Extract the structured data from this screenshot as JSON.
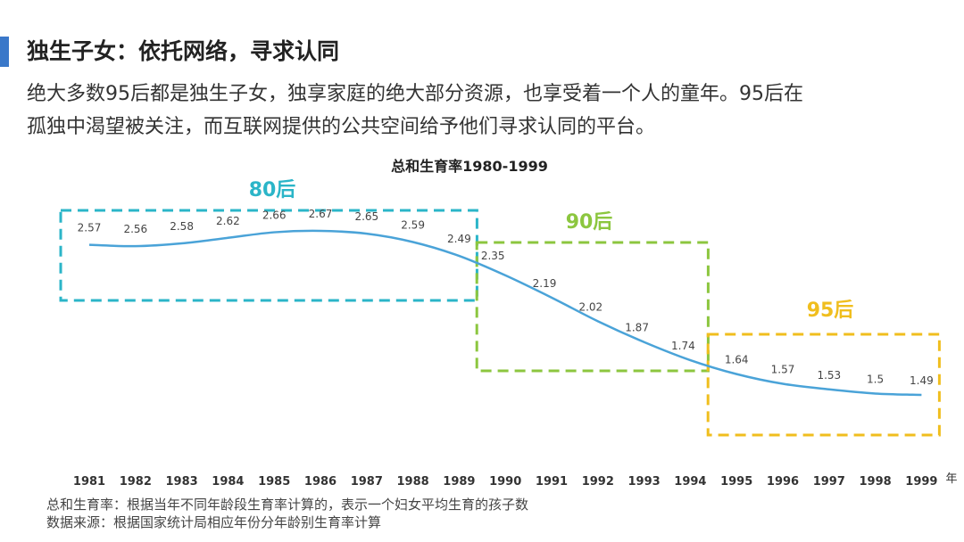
{
  "header": {
    "title": "独生子女：依托网络，寻求认同",
    "intro_lines": [
      "绝大多数95后都是独生子女，独享家庭的绝大部分资源，也享受着一个人的童年。95后在",
      "孤独中渴望被关注，而互联网提供的公共空间给予他们寻求认同的平台。"
    ]
  },
  "chart_data": {
    "type": "line",
    "title": "总和生育率1980-1999",
    "x_unit": "年",
    "x": [
      1981,
      1982,
      1983,
      1984,
      1985,
      1986,
      1987,
      1988,
      1989,
      1990,
      1991,
      1992,
      1993,
      1994,
      1995,
      1996,
      1997,
      1998,
      1999
    ],
    "values": [
      2.57,
      2.56,
      2.58,
      2.62,
      2.66,
      2.67,
      2.65,
      2.59,
      2.49,
      2.35,
      2.19,
      2.02,
      1.87,
      1.74,
      1.64,
      1.57,
      1.53,
      1.5,
      1.49
    ],
    "value_labels": [
      "2.57",
      "2.56",
      "2.58",
      "2.62",
      "2.66",
      "2.67",
      "2.65",
      "2.59",
      "2.49",
      "2.35",
      "2.19",
      "2.02",
      "1.87",
      "1.74",
      "1.64",
      "1.57",
      "1.53",
      "1.5",
      "1.49"
    ],
    "line_color": "#4aa3d8",
    "grid": false,
    "groups": [
      {
        "label": "80后",
        "from": 1981,
        "to": 1989,
        "color": "#2bb5c8"
      },
      {
        "label": "90后",
        "from": 1990,
        "to": 1994,
        "color": "#8cc63f"
      },
      {
        "label": "95后",
        "from": 1995,
        "to": 1999,
        "color": "#f0be1e"
      }
    ]
  },
  "notes": {
    "definition": "总和生育率：根据当年不同年龄段生育率计算的，表示一个妇女平均生育的孩子数",
    "source": "数据来源：根据国家统计局相应年份分年龄别生育率计算"
  }
}
